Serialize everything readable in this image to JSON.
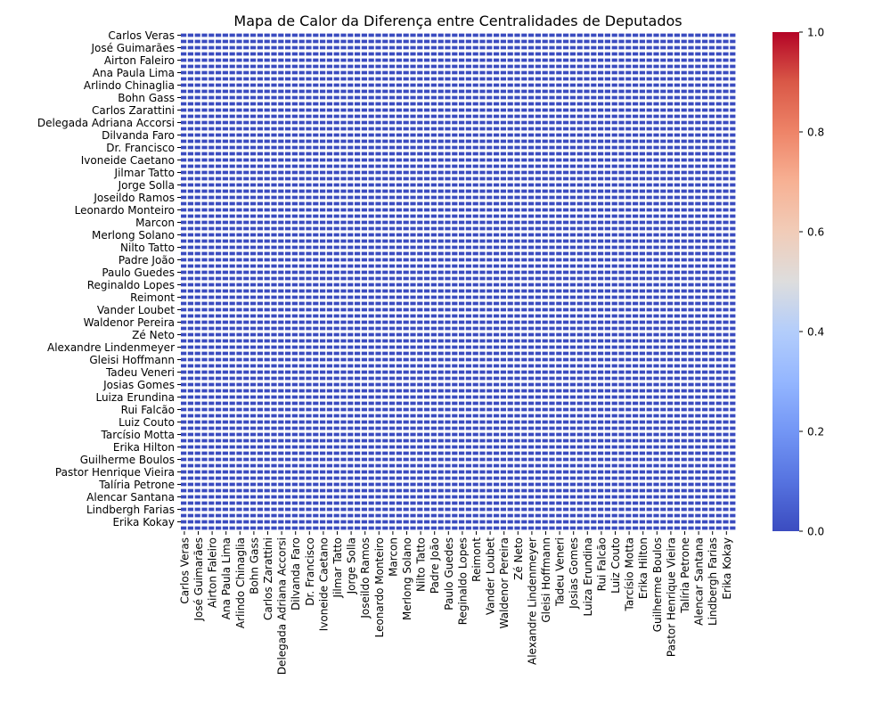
{
  "chart_data": {
    "type": "heatmap",
    "title": "Mapa de Calor da Diferença entre Centralidades de Deputados",
    "xlabel": "",
    "ylabel": "",
    "tick_labels": [
      "Carlos Veras",
      "José Guimarães",
      "Airton Faleiro",
      "Ana Paula Lima",
      "Arlindo Chinaglia",
      "Bohn Gass",
      "Carlos Zarattini",
      "Delegada Adriana Accorsi",
      "Dilvanda Faro",
      "Dr. Francisco",
      "Ivoneide Caetano",
      "Jilmar Tatto",
      "Jorge Solla",
      "Joseildo Ramos",
      "Leonardo Monteiro",
      "Marcon",
      "Merlong Solano",
      "Nilto Tatto",
      "Padre João",
      "Paulo Guedes",
      "Reginaldo Lopes",
      "Reimont",
      "Vander Loubet",
      "Waldenor Pereira",
      "Zé Neto",
      "Alexandre Lindenmeyer",
      "Gleisi Hoffmann",
      "Tadeu Veneri",
      "Josias Gomes",
      "Luiza Erundina",
      "Rui Falcão",
      "Luiz Couto",
      "Tarcísio Motta",
      "Erika Hilton",
      "Guilherme Boulos",
      "Pastor Henrique Vieira",
      "Talíria Petrone",
      "Alencar Santana",
      "Lindbergh Farias",
      "Erika Kokay"
    ],
    "cell_count": 80,
    "labeled_every": 2,
    "values_summary": "all cells near 0.0",
    "colormap": "coolwarm",
    "colorbar": {
      "min": 0.0,
      "max": 1.0,
      "ticks": [
        "0.0",
        "0.2",
        "0.4",
        "0.6",
        "0.8",
        "1.0"
      ]
    },
    "colors": {
      "low": "#3b4cc0",
      "mid": "#dddddd",
      "high": "#b40426",
      "cell_gap": "#ffffff"
    }
  }
}
